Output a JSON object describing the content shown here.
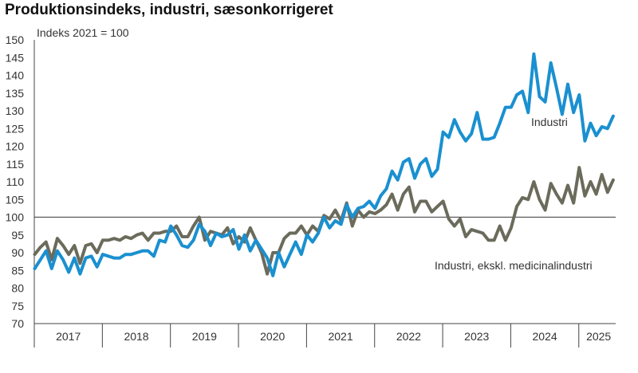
{
  "chart_data": {
    "type": "line",
    "title": "Produktionsindeks, industri, sæsonkorrigeret",
    "ylabel": "Indeks 2021 = 100",
    "xlabel": "",
    "ylim": [
      70,
      150
    ],
    "yticks": [
      "70",
      "75",
      "80",
      "85",
      "90",
      "95",
      "100",
      "105",
      "110",
      "115",
      "120",
      "125",
      "130",
      "135",
      "140",
      "145",
      "150"
    ],
    "xticks": [
      "2017",
      "2018",
      "2019",
      "2020",
      "2021",
      "2022",
      "2023",
      "2024",
      "2025"
    ],
    "x_range": [
      "2017-01",
      "2025-07"
    ],
    "reference_line": 100,
    "grid": false,
    "series": [
      {
        "name": "Industri",
        "color": "#1a90d0",
        "values": [
          85.5,
          88.0,
          90.5,
          85.5,
          90.5,
          88.0,
          84.5,
          88.5,
          84.0,
          88.5,
          89.0,
          86.0,
          89.5,
          89.0,
          88.5,
          88.5,
          89.5,
          89.5,
          90.0,
          90.5,
          90.5,
          89.0,
          93.5,
          93.0,
          97.5,
          95.0,
          92.0,
          91.5,
          93.5,
          98.0,
          96.0,
          92.0,
          95.5,
          94.5,
          95.0,
          96.5,
          91.0,
          95.0,
          90.5,
          93.5,
          91.0,
          88.5,
          83.5,
          90.0,
          86.0,
          89.5,
          93.0,
          89.5,
          95.0,
          93.0,
          95.5,
          100.0,
          97.0,
          99.0,
          98.0,
          103.5,
          100.0,
          102.5,
          103.0,
          104.5,
          102.5,
          106.0,
          108.0,
          113.0,
          110.5,
          115.5,
          116.5,
          111.0,
          115.0,
          116.5,
          111.5,
          113.5,
          124.0,
          122.5,
          127.5,
          124.0,
          121.5,
          123.5,
          129.5,
          122.0,
          122.0,
          122.5,
          126.5,
          131.0,
          131.0,
          134.5,
          135.5,
          129.5,
          146.0,
          134.0,
          132.5,
          143.5,
          136.5,
          129.0,
          137.5,
          129.5,
          134.5,
          121.5,
          126.5,
          123.0,
          125.5,
          125.0,
          128.5
        ]
      },
      {
        "name": "Industri, ekskl. medicinalindustri",
        "color": "#6b6b5c",
        "values": [
          89.5,
          91.5,
          93.0,
          88.0,
          94.0,
          92.0,
          89.5,
          92.0,
          87.0,
          92.0,
          92.5,
          90.0,
          93.5,
          93.5,
          94.0,
          93.5,
          94.5,
          94.0,
          95.0,
          95.5,
          93.5,
          95.5,
          95.5,
          96.0,
          96.0,
          97.5,
          94.5,
          94.5,
          97.5,
          100.0,
          93.5,
          96.0,
          95.5,
          95.0,
          97.0,
          92.5,
          94.5,
          93.0,
          97.0,
          93.5,
          90.0,
          84.0,
          90.0,
          90.0,
          94.0,
          95.5,
          95.5,
          97.5,
          95.0,
          97.5,
          96.0,
          100.5,
          99.5,
          102.0,
          99.0,
          104.0,
          97.5,
          102.0,
          100.0,
          101.5,
          101.0,
          102.0,
          103.5,
          106.5,
          102.0,
          106.5,
          108.5,
          101.5,
          104.5,
          104.5,
          101.5,
          103.0,
          104.5,
          99.5,
          97.5,
          99.5,
          94.5,
          96.5,
          96.0,
          95.5,
          93.5,
          93.5,
          97.5,
          93.5,
          97.0,
          103.0,
          105.5,
          105.0,
          110.0,
          105.0,
          102.0,
          109.5,
          106.5,
          104.0,
          109.0,
          104.0,
          114.0,
          106.0,
          110.0,
          106.5,
          112.0,
          107.0,
          110.5
        ]
      }
    ],
    "annotations": [
      {
        "text": "Industri"
      },
      {
        "text": "Industri, ekskl. medicinalindustri"
      }
    ]
  }
}
